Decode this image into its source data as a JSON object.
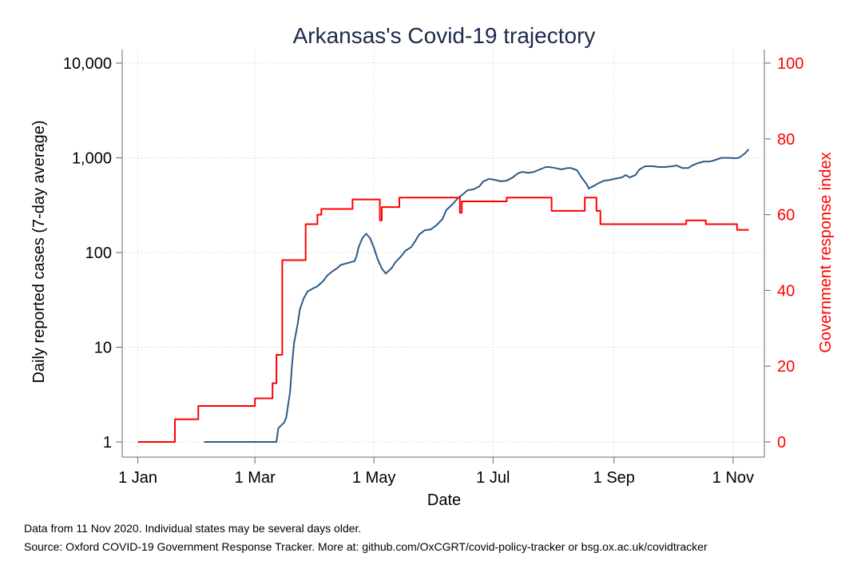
{
  "chart_data": {
    "type": "line",
    "title": "Arkansas's Covid-19 trajectory",
    "xlabel": "Date",
    "ylabel": "Daily reported cases (7-day average)",
    "y2label": "Government response index",
    "y_scale": "log",
    "ylim": [
      1,
      10000
    ],
    "y2lim": [
      0,
      100
    ],
    "xlim": [
      "2019-12-24",
      "2020-11-17"
    ],
    "grid": true,
    "legend": "none",
    "x_ticks": [
      {
        "date": "2020-01-01",
        "label": "1 Jan"
      },
      {
        "date": "2020-03-01",
        "label": "1 Mar"
      },
      {
        "date": "2020-05-01",
        "label": "1 May"
      },
      {
        "date": "2020-07-01",
        "label": "1 Jul"
      },
      {
        "date": "2020-09-01",
        "label": "1 Sep"
      },
      {
        "date": "2020-11-01",
        "label": "1 Nov"
      }
    ],
    "y_ticks": [
      {
        "value": 1,
        "label": "1"
      },
      {
        "value": 10,
        "label": "10"
      },
      {
        "value": 100,
        "label": "100"
      },
      {
        "value": 1000,
        "label": "1,000"
      },
      {
        "value": 10000,
        "label": "10,000"
      }
    ],
    "y2_ticks": [
      {
        "value": 0,
        "label": "0"
      },
      {
        "value": 20,
        "label": "20"
      },
      {
        "value": 40,
        "label": "40"
      },
      {
        "value": 60,
        "label": "60"
      },
      {
        "value": 80,
        "label": "80"
      },
      {
        "value": 100,
        "label": "100"
      }
    ],
    "series": [
      {
        "axis": "left",
        "style": "line",
        "color": "#2c5a88",
        "points": [
          [
            "2020-02-04",
            1
          ],
          [
            "2020-03-12",
            1
          ],
          [
            "2020-03-13",
            1.4
          ],
          [
            "2020-03-16",
            1.6
          ],
          [
            "2020-03-17",
            1.8
          ],
          [
            "2020-03-19",
            3.4
          ],
          [
            "2020-03-20",
            6.5
          ],
          [
            "2020-03-21",
            11
          ],
          [
            "2020-03-23",
            18
          ],
          [
            "2020-03-24",
            25
          ],
          [
            "2020-03-26",
            33
          ],
          [
            "2020-03-28",
            39
          ],
          [
            "2020-03-31",
            42
          ],
          [
            "2020-04-02",
            44
          ],
          [
            "2020-04-05",
            50
          ],
          [
            "2020-04-07",
            57
          ],
          [
            "2020-04-10",
            64
          ],
          [
            "2020-04-12",
            68
          ],
          [
            "2020-04-14",
            74
          ],
          [
            "2020-04-18",
            78
          ],
          [
            "2020-04-21",
            81
          ],
          [
            "2020-04-22",
            91
          ],
          [
            "2020-04-23",
            112
          ],
          [
            "2020-04-25",
            142
          ],
          [
            "2020-04-27",
            158
          ],
          [
            "2020-04-29",
            142
          ],
          [
            "2020-05-01",
            112
          ],
          [
            "2020-05-03",
            84
          ],
          [
            "2020-05-05",
            68
          ],
          [
            "2020-05-07",
            60
          ],
          [
            "2020-05-10",
            68
          ],
          [
            "2020-05-12",
            79
          ],
          [
            "2020-05-15",
            92
          ],
          [
            "2020-05-17",
            104
          ],
          [
            "2020-05-20",
            114
          ],
          [
            "2020-05-22",
            131
          ],
          [
            "2020-05-24",
            154
          ],
          [
            "2020-05-27",
            172
          ],
          [
            "2020-05-30",
            175
          ],
          [
            "2020-06-02",
            194
          ],
          [
            "2020-06-05",
            225
          ],
          [
            "2020-06-07",
            280
          ],
          [
            "2020-06-10",
            320
          ],
          [
            "2020-06-13",
            375
          ],
          [
            "2020-06-16",
            420
          ],
          [
            "2020-06-18",
            455
          ],
          [
            "2020-06-21",
            465
          ],
          [
            "2020-06-24",
            500
          ],
          [
            "2020-06-26",
            565
          ],
          [
            "2020-06-29",
            600
          ],
          [
            "2020-07-02",
            585
          ],
          [
            "2020-07-05",
            565
          ],
          [
            "2020-07-08",
            575
          ],
          [
            "2020-07-11",
            620
          ],
          [
            "2020-07-14",
            690
          ],
          [
            "2020-07-16",
            710
          ],
          [
            "2020-07-19",
            695
          ],
          [
            "2020-07-22",
            710
          ],
          [
            "2020-07-24",
            740
          ],
          [
            "2020-07-28",
            800
          ],
          [
            "2020-07-30",
            800
          ],
          [
            "2020-08-02",
            780
          ],
          [
            "2020-08-05",
            755
          ],
          [
            "2020-08-08",
            780
          ],
          [
            "2020-08-10",
            780
          ],
          [
            "2020-08-13",
            740
          ],
          [
            "2020-08-15",
            635
          ],
          [
            "2020-08-18",
            525
          ],
          [
            "2020-08-19",
            475
          ],
          [
            "2020-08-22",
            510
          ],
          [
            "2020-08-24",
            540
          ],
          [
            "2020-08-27",
            575
          ],
          [
            "2020-08-30",
            585
          ],
          [
            "2020-09-02",
            605
          ],
          [
            "2020-09-05",
            620
          ],
          [
            "2020-09-07",
            660
          ],
          [
            "2020-09-09",
            620
          ],
          [
            "2020-09-12",
            660
          ],
          [
            "2020-09-14",
            755
          ],
          [
            "2020-09-17",
            815
          ],
          [
            "2020-09-21",
            815
          ],
          [
            "2020-09-24",
            800
          ],
          [
            "2020-09-27",
            800
          ],
          [
            "2020-10-01",
            815
          ],
          [
            "2020-10-03",
            830
          ],
          [
            "2020-10-06",
            780
          ],
          [
            "2020-10-09",
            780
          ],
          [
            "2020-10-11",
            830
          ],
          [
            "2020-10-14",
            880
          ],
          [
            "2020-10-17",
            915
          ],
          [
            "2020-10-20",
            915
          ],
          [
            "2020-10-23",
            950
          ],
          [
            "2020-10-26",
            1000
          ],
          [
            "2020-10-30",
            1000
          ],
          [
            "2020-11-02",
            990
          ],
          [
            "2020-11-04",
            1000
          ],
          [
            "2020-11-07",
            1110
          ],
          [
            "2020-11-09",
            1230
          ]
        ]
      },
      {
        "axis": "right",
        "style": "step",
        "color": "#ff0000",
        "points": [
          [
            "2020-01-01",
            0
          ],
          [
            "2020-01-20",
            6
          ],
          [
            "2020-02-01",
            9.5
          ],
          [
            "2020-03-01",
            11.5
          ],
          [
            "2020-03-10",
            15.5
          ],
          [
            "2020-03-12",
            23
          ],
          [
            "2020-03-15",
            48
          ],
          [
            "2020-03-27",
            57.5
          ],
          [
            "2020-04-02",
            60
          ],
          [
            "2020-04-04",
            61.5
          ],
          [
            "2020-04-20",
            64
          ],
          [
            "2020-05-04",
            58.5
          ],
          [
            "2020-05-05",
            62
          ],
          [
            "2020-05-14",
            64.5
          ],
          [
            "2020-06-14",
            60.5
          ],
          [
            "2020-06-15",
            63.5
          ],
          [
            "2020-07-08",
            64.5
          ],
          [
            "2020-07-31",
            61
          ],
          [
            "2020-08-17",
            64.5
          ],
          [
            "2020-08-23",
            61
          ],
          [
            "2020-08-25",
            57.5
          ],
          [
            "2020-10-08",
            58.5
          ],
          [
            "2020-10-18",
            57.5
          ],
          [
            "2020-11-03",
            56
          ],
          [
            "2020-11-09",
            56
          ]
        ]
      }
    ]
  },
  "notes": [
    "Data from 11 Nov 2020. Individual states may be several days older.",
    "Source: Oxford COVID-19 Government Response Tracker. More at: github.com/OxCGRT/covid-policy-tracker or bsg.ox.ac.uk/covidtracker"
  ]
}
